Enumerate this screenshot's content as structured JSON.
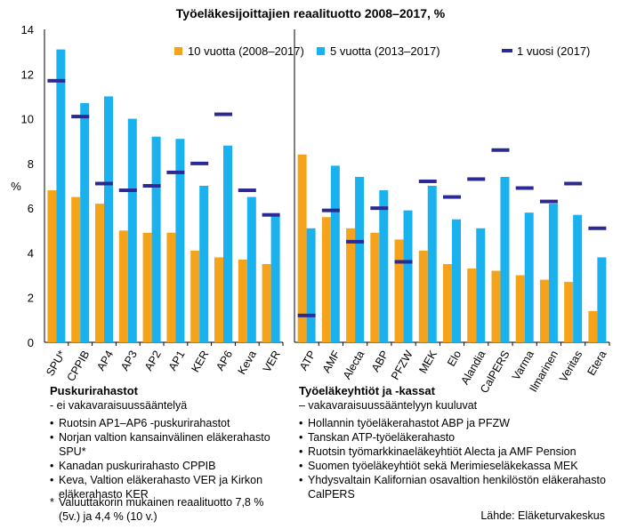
{
  "chart_data": {
    "type": "bar",
    "title": "Työeläkesijoittajien reaalituotto 2008–2017, %",
    "ylabel": "%",
    "ylim": [
      0,
      14
    ],
    "yticks": [
      0,
      2,
      4,
      6,
      8,
      10,
      12,
      14
    ],
    "grid": false,
    "legend_position": "top-right",
    "series": [
      {
        "name": "10 vuotta (2008–2017)",
        "color": "#f5a31a",
        "mark": "bar"
      },
      {
        "name": "5 vuotta (2013–2017)",
        "color": "#1ab2ee",
        "mark": "bar"
      },
      {
        "name": "1 vuosi (2017)",
        "color": "#2b2a94",
        "mark": "dash"
      }
    ],
    "groups": [
      {
        "categories": [
          "SPU*",
          "CPPIB",
          "AP4",
          "AP3",
          "AP2",
          "AP1",
          "KER",
          "AP6",
          "Keva",
          "VER"
        ],
        "ten_year": [
          6.8,
          6.5,
          6.2,
          5.0,
          4.9,
          4.9,
          4.1,
          3.8,
          3.7,
          3.5
        ],
        "five_year": [
          13.1,
          10.7,
          11.0,
          10.0,
          9.2,
          9.1,
          7.0,
          8.8,
          6.5,
          5.7
        ],
        "one_year": [
          11.7,
          10.1,
          7.1,
          6.8,
          7.0,
          7.6,
          8.0,
          10.2,
          6.8,
          5.7
        ]
      },
      {
        "categories": [
          "ATP",
          "AMF",
          "Alecta",
          "ABP",
          "PFZW",
          "MEK",
          "Elo",
          "Alandia",
          "CalPERS",
          "Varma",
          "Ilmarinen",
          "Veritas",
          "Etera"
        ],
        "ten_year": [
          8.4,
          5.6,
          5.1,
          4.9,
          4.6,
          4.1,
          3.5,
          3.3,
          3.2,
          3.0,
          2.8,
          2.7,
          1.4
        ],
        "five_year": [
          5.1,
          7.9,
          7.4,
          6.8,
          5.9,
          7.0,
          5.5,
          5.1,
          7.4,
          5.8,
          6.2,
          5.7,
          3.8
        ],
        "one_year": [
          1.2,
          5.9,
          4.5,
          6.0,
          3.6,
          7.2,
          6.5,
          7.3,
          8.6,
          6.9,
          6.3,
          7.1,
          5.1
        ]
      }
    ]
  },
  "notes_left": {
    "heading": "Puskurirahastot",
    "sub": "- ei vakavaraisuussääntelyä",
    "items": [
      "Ruotsin AP1–AP6 -puskurirahastot",
      "Norjan valtion kansainvälinen eläkerahasto SPU*",
      "Kanadan puskurirahasto CPPIB",
      "Keva, Valtion eläkerahasto VER ja Kirkon eläkerahasto KER"
    ]
  },
  "notes_right": {
    "heading": "Työeläkeyhtiöt ja -kassat",
    "sub": "– vakavaraisuussääntelyyn kuuluvat",
    "items": [
      "Hollannin työeläkerahastot ABP ja PFZW",
      "Tanskan ATP-työeläkerahasto",
      "Ruotsin työmarkkinaeläkeyhtiöt Alecta ja AMF Pension",
      "Suomen työeläkeyhtiöt sekä Merimieseläkekassa MEK",
      "Yhdysvaltain Kalifornian osavaltion henkilöstön eläkerahasto CalPERS"
    ]
  },
  "footnote": {
    "star": "*",
    "text": "Valuuttakorin mukainen reaalituotto 7,8 % (5v.) ja 4,4 % (10 v.)"
  },
  "source": "Lähde: Eläketurvakeskus"
}
